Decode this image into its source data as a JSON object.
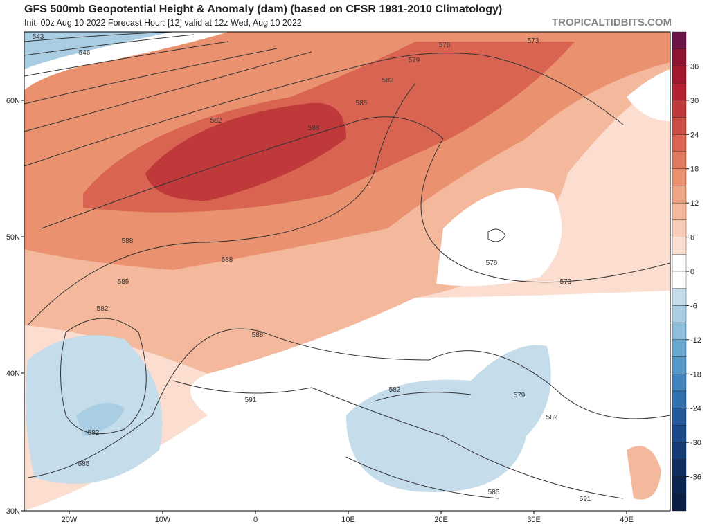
{
  "header": {
    "title": "GFS 500mb Geopotential Height & Anomaly (dam) (based on CFSR 1981-2010 Climatology)",
    "subtitle": "Init: 00z Aug 10 2022   Forecast Hour: [12]   valid at 12z Wed, Aug 10 2022",
    "brand": "TROPICALTIDBITS.COM"
  },
  "map": {
    "lat_labels": [
      "60N",
      "50N",
      "40N",
      "30N"
    ],
    "lon_labels": [
      "20W",
      "10W",
      "0",
      "10E",
      "20E",
      "30E",
      "40E"
    ],
    "contour_labels": [
      "543",
      "546",
      "576",
      "573",
      "579",
      "582",
      "585",
      "588",
      "582",
      "588",
      "588",
      "585",
      "582",
      "582",
      "585",
      "591",
      "588",
      "576",
      "579",
      "582",
      "579",
      "582",
      "585",
      "591"
    ]
  },
  "colorbar": {
    "ticks": [
      "36",
      "30",
      "24",
      "18",
      "12",
      "6",
      "0",
      "-6",
      "-12",
      "-18",
      "-24",
      "-30",
      "-36"
    ],
    "colors": [
      "#6e1548",
      "#8f1432",
      "#a3182e",
      "#b3202f",
      "#c0393a",
      "#cb4e45",
      "#d86451",
      "#e07b5f",
      "#ea9170",
      "#f0a685",
      "#f4b99c",
      "#f8ccb6",
      "#fbded0",
      "#ffffff",
      "#ffffff",
      "#c5dceb",
      "#a9cde3",
      "#8dbfdd",
      "#6ba8d1",
      "#5597c6",
      "#4284bc",
      "#3270ad",
      "#23589b",
      "#1c4a88",
      "#153d75",
      "#0e2f60",
      "#0b2551",
      "#0a1f45"
    ]
  }
}
